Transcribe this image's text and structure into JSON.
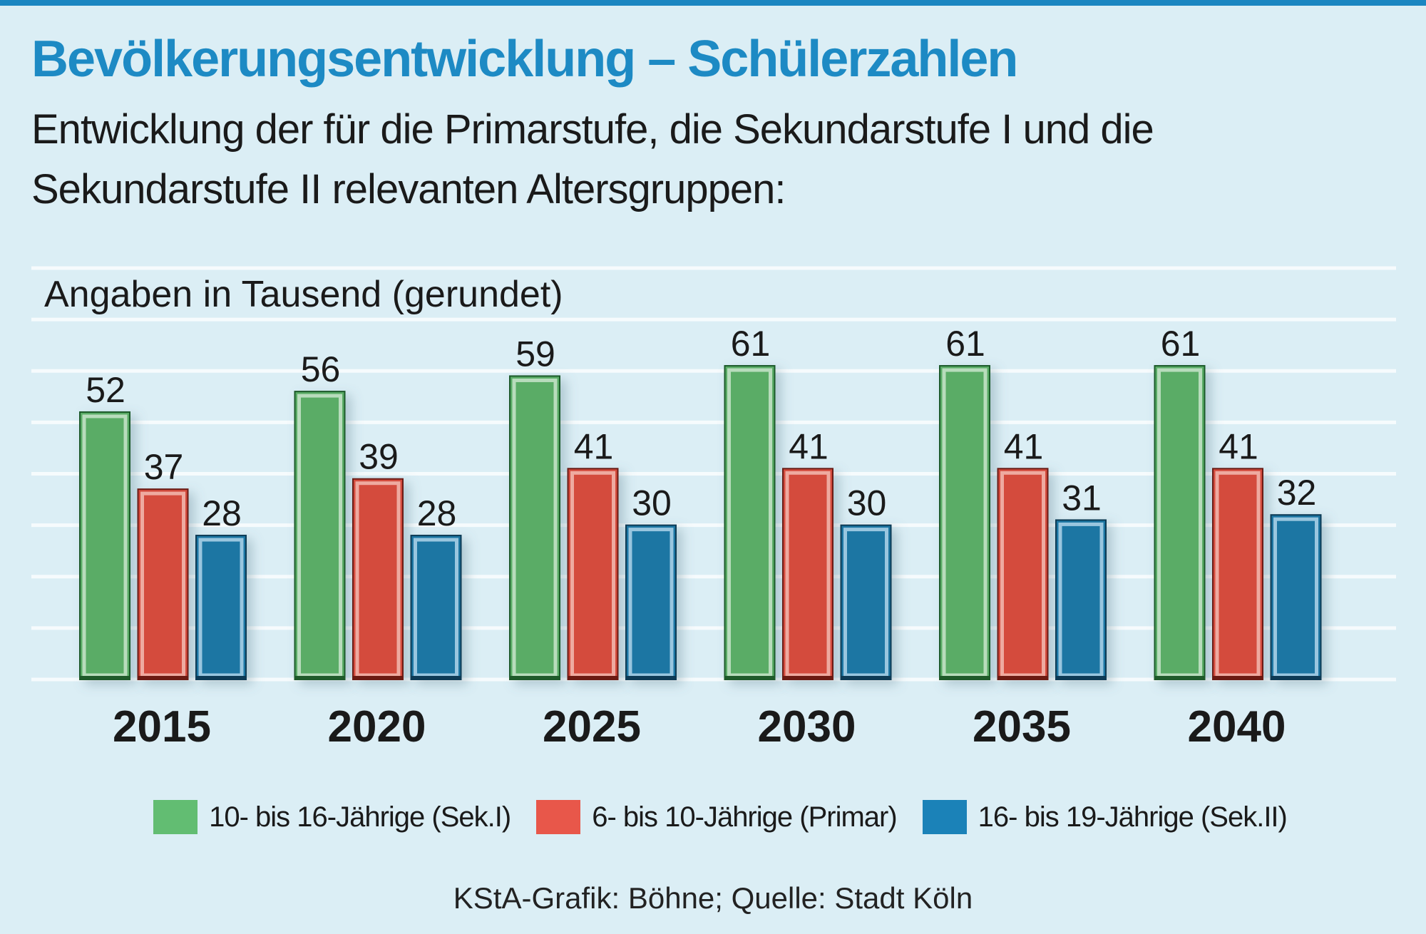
{
  "title": "Bevölkerungsentwicklung – Schülerzahlen",
  "subtitle": "Entwicklung der für die Primarstufe, die Sekundarstufe I und die Sekundarstufe II relevanten Altersgruppen:",
  "source": "KStA-Grafik: Böhne; Quelle: Stadt Köln",
  "chart_data": {
    "type": "bar",
    "title": "Bevölkerungsentwicklung – Schülerzahlen",
    "unit_label": "Angaben in Tausend (gerundet)",
    "categories": [
      "2015",
      "2020",
      "2025",
      "2030",
      "2035",
      "2040"
    ],
    "series": [
      {
        "name": "10- bis 16-Jährige (Sek.I)",
        "color": "#5aac66",
        "values": [
          52,
          56,
          59,
          61,
          61,
          61
        ]
      },
      {
        "name": "6- bis 10-Jährige (Primar)",
        "color": "#d44c3e",
        "values": [
          37,
          39,
          41,
          41,
          41,
          41
        ]
      },
      {
        "name": "16- bis 19-Jährige (Sek.II)",
        "color": "#1b76a3",
        "values": [
          28,
          28,
          30,
          30,
          31,
          32
        ]
      }
    ],
    "ylim": [
      0,
      80
    ],
    "grid": true,
    "legend": "bottom"
  }
}
